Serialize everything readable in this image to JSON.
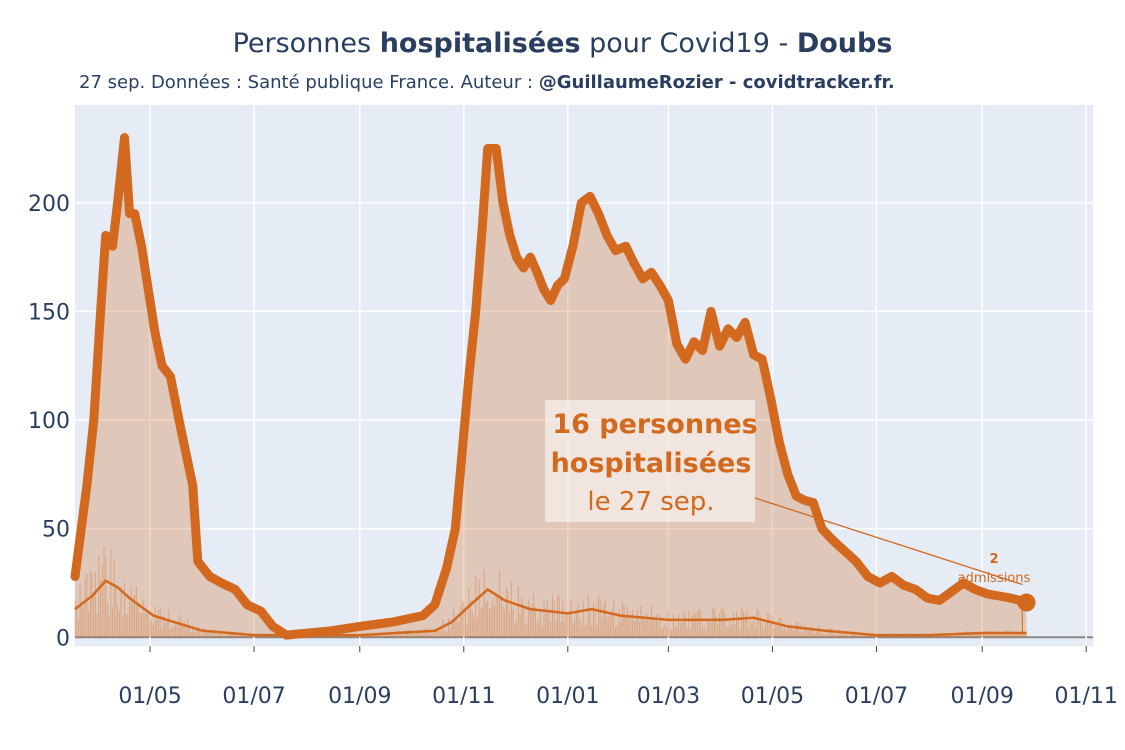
{
  "title": {
    "part1": "Personnes ",
    "bold1": "hospitalisées",
    "part2": " pour Covid19 - ",
    "bold2": "Doubs"
  },
  "subtitle": {
    "text": "27 sep. Données : Santé publique France. Auteur : ",
    "bold": "@GuillaumeRozier - covidtracker.fr."
  },
  "annotation": {
    "line1": "16 personnes",
    "line2": "hospitalisées",
    "line3": "le 27 sep."
  },
  "admissions_label": {
    "value": "2",
    "unit": "admissions"
  },
  "colors": {
    "main_line": "#d2691e",
    "fill": "rgba(210,105,30,0.28)",
    "plot_bg": "#e5ecf6",
    "grid": "#ffffff",
    "text": "#2a3f5f"
  },
  "chart_data": {
    "type": "line",
    "x_type": "date",
    "xlim": [
      "2020-03-18",
      "2021-11-05"
    ],
    "ylim": [
      -4,
      245
    ],
    "y_ticks": [
      0,
      50,
      100,
      150,
      200
    ],
    "x_ticks": [
      {
        "date": "2020-05-01",
        "label": "01/05"
      },
      {
        "date": "2020-07-01",
        "label": "01/07"
      },
      {
        "date": "2020-09-01",
        "label": "01/09"
      },
      {
        "date": "2020-11-01",
        "label": "01/11"
      },
      {
        "date": "2021-01-01",
        "label": "01/01"
      },
      {
        "date": "2021-03-01",
        "label": "01/03"
      },
      {
        "date": "2021-05-01",
        "label": "01/05"
      },
      {
        "date": "2021-07-01",
        "label": "01/07"
      },
      {
        "date": "2021-09-01",
        "label": "01/09"
      },
      {
        "date": "2021-11-01",
        "label": "01/11"
      }
    ],
    "grid": true,
    "series": [
      {
        "role": "hospitalized",
        "points": [
          [
            "2020-03-18",
            28
          ],
          [
            "2020-03-25",
            70
          ],
          [
            "2020-03-29",
            100
          ],
          [
            "2020-04-02",
            150
          ],
          [
            "2020-04-05",
            185
          ],
          [
            "2020-04-09",
            180
          ],
          [
            "2020-04-12",
            200
          ],
          [
            "2020-04-16",
            230
          ],
          [
            "2020-04-19",
            195
          ],
          [
            "2020-04-22",
            195
          ],
          [
            "2020-04-26",
            180
          ],
          [
            "2020-04-30",
            160
          ],
          [
            "2020-05-04",
            140
          ],
          [
            "2020-05-08",
            125
          ],
          [
            "2020-05-13",
            120
          ],
          [
            "2020-05-18",
            100
          ],
          [
            "2020-05-22",
            85
          ],
          [
            "2020-05-26",
            70
          ],
          [
            "2020-05-29",
            35
          ],
          [
            "2020-06-05",
            28
          ],
          [
            "2020-06-12",
            25
          ],
          [
            "2020-06-20",
            22
          ],
          [
            "2020-06-27",
            15
          ],
          [
            "2020-07-05",
            12
          ],
          [
            "2020-07-12",
            5
          ],
          [
            "2020-07-20",
            1
          ],
          [
            "2020-08-15",
            3
          ],
          [
            "2020-09-01",
            5
          ],
          [
            "2020-09-20",
            7
          ],
          [
            "2020-10-08",
            10
          ],
          [
            "2020-10-15",
            15
          ],
          [
            "2020-10-22",
            32
          ],
          [
            "2020-10-27",
            50
          ],
          [
            "2020-10-31",
            85
          ],
          [
            "2020-11-04",
            120
          ],
          [
            "2020-11-08",
            150
          ],
          [
            "2020-11-12",
            190
          ],
          [
            "2020-11-15",
            225
          ],
          [
            "2020-11-20",
            225
          ],
          [
            "2020-11-24",
            200
          ],
          [
            "2020-11-28",
            185
          ],
          [
            "2020-12-02",
            175
          ],
          [
            "2020-12-06",
            170
          ],
          [
            "2020-12-10",
            175
          ],
          [
            "2020-12-14",
            168
          ],
          [
            "2020-12-18",
            160
          ],
          [
            "2020-12-22",
            155
          ],
          [
            "2020-12-26",
            162
          ],
          [
            "2020-12-30",
            165
          ],
          [
            "2021-01-04",
            180
          ],
          [
            "2021-01-09",
            200
          ],
          [
            "2021-01-14",
            203
          ],
          [
            "2021-01-19",
            195
          ],
          [
            "2021-01-24",
            185
          ],
          [
            "2021-01-29",
            178
          ],
          [
            "2021-02-04",
            180
          ],
          [
            "2021-02-09",
            172
          ],
          [
            "2021-02-14",
            165
          ],
          [
            "2021-02-19",
            168
          ],
          [
            "2021-02-24",
            162
          ],
          [
            "2021-03-01",
            155
          ],
          [
            "2021-03-06",
            135
          ],
          [
            "2021-03-11",
            128
          ],
          [
            "2021-03-16",
            136
          ],
          [
            "2021-03-21",
            132
          ],
          [
            "2021-03-26",
            150
          ],
          [
            "2021-03-31",
            134
          ],
          [
            "2021-04-05",
            142
          ],
          [
            "2021-04-10",
            138
          ],
          [
            "2021-04-15",
            145
          ],
          [
            "2021-04-20",
            130
          ],
          [
            "2021-04-25",
            128
          ],
          [
            "2021-04-30",
            110
          ],
          [
            "2021-05-05",
            90
          ],
          [
            "2021-05-10",
            75
          ],
          [
            "2021-05-15",
            65
          ],
          [
            "2021-05-20",
            63
          ],
          [
            "2021-05-25",
            62
          ],
          [
            "2021-05-30",
            50
          ],
          [
            "2021-06-05",
            45
          ],
          [
            "2021-06-12",
            40
          ],
          [
            "2021-06-19",
            35
          ],
          [
            "2021-06-26",
            28
          ],
          [
            "2021-07-03",
            25
          ],
          [
            "2021-07-10",
            28
          ],
          [
            "2021-07-17",
            24
          ],
          [
            "2021-07-24",
            22
          ],
          [
            "2021-07-31",
            18
          ],
          [
            "2021-08-07",
            17
          ],
          [
            "2021-08-14",
            21
          ],
          [
            "2021-08-21",
            25
          ],
          [
            "2021-08-28",
            22
          ],
          [
            "2021-09-04",
            20
          ],
          [
            "2021-09-11",
            19
          ],
          [
            "2021-09-18",
            18
          ],
          [
            "2021-09-23",
            17
          ],
          [
            "2021-09-27",
            16
          ]
        ]
      },
      {
        "role": "admissions",
        "points": [
          [
            "2020-03-18",
            13
          ],
          [
            "2020-03-28",
            19
          ],
          [
            "2020-04-05",
            26
          ],
          [
            "2020-04-12",
            23
          ],
          [
            "2020-04-19",
            18
          ],
          [
            "2020-04-26",
            14
          ],
          [
            "2020-05-03",
            10
          ],
          [
            "2020-05-15",
            7
          ],
          [
            "2020-06-01",
            3
          ],
          [
            "2020-07-01",
            1
          ],
          [
            "2020-09-01",
            1
          ],
          [
            "2020-10-15",
            3
          ],
          [
            "2020-10-25",
            7
          ],
          [
            "2020-11-05",
            15
          ],
          [
            "2020-11-15",
            22
          ],
          [
            "2020-11-25",
            17
          ],
          [
            "2020-12-10",
            13
          ],
          [
            "2021-01-01",
            11
          ],
          [
            "2021-01-15",
            13
          ],
          [
            "2021-02-01",
            10
          ],
          [
            "2021-03-01",
            8
          ],
          [
            "2021-04-01",
            8
          ],
          [
            "2021-04-20",
            9
          ],
          [
            "2021-05-10",
            5
          ],
          [
            "2021-06-01",
            3
          ],
          [
            "2021-07-01",
            1
          ],
          [
            "2021-08-01",
            1
          ],
          [
            "2021-09-01",
            2
          ],
          [
            "2021-09-27",
            2
          ]
        ]
      }
    ]
  }
}
